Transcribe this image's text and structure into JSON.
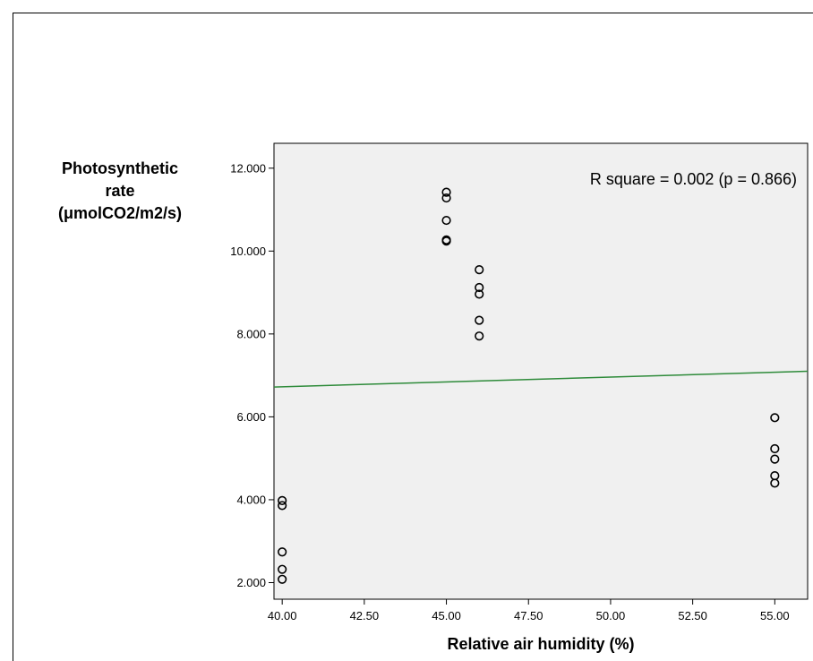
{
  "chart_data": {
    "type": "scatter",
    "xlabel": "Relative air humidity (%)",
    "ylabel": "Photosynthetic\nrate\n(μmolCO2/m2/s)",
    "xlim": [
      39.75,
      56.0
    ],
    "ylim": [
      1.6,
      12.6
    ],
    "x_ticks": [
      40.0,
      42.5,
      45.0,
      47.5,
      50.0,
      52.5,
      55.0
    ],
    "x_tick_labels": [
      "40.00",
      "42.50",
      "45.00",
      "47.50",
      "50.00",
      "52.50",
      "55.00"
    ],
    "y_ticks": [
      2.0,
      4.0,
      6.0,
      8.0,
      10.0,
      12.0
    ],
    "y_tick_labels": [
      "2.000",
      "4.000",
      "6.000",
      "8.000",
      "10.000",
      "12.000"
    ],
    "points": [
      {
        "x": 40,
        "y": 3.98
      },
      {
        "x": 40,
        "y": 3.86
      },
      {
        "x": 40,
        "y": 2.74
      },
      {
        "x": 40,
        "y": 2.32
      },
      {
        "x": 40,
        "y": 2.08
      },
      {
        "x": 45,
        "y": 11.42
      },
      {
        "x": 45,
        "y": 11.28
      },
      {
        "x": 45,
        "y": 10.74
      },
      {
        "x": 45,
        "y": 10.27
      },
      {
        "x": 45,
        "y": 10.24
      },
      {
        "x": 46,
        "y": 9.55
      },
      {
        "x": 46,
        "y": 9.12
      },
      {
        "x": 46,
        "y": 8.96
      },
      {
        "x": 46,
        "y": 8.33
      },
      {
        "x": 46,
        "y": 7.95
      },
      {
        "x": 55,
        "y": 5.98
      },
      {
        "x": 55,
        "y": 5.23
      },
      {
        "x": 55,
        "y": 4.98
      },
      {
        "x": 55,
        "y": 4.58
      },
      {
        "x": 55,
        "y": 4.4
      }
    ],
    "fit_line": {
      "x": [
        39.75,
        56.0
      ],
      "y": [
        6.72,
        7.1
      ]
    },
    "annotation": "R square = 0.002 (p = 0.866)",
    "grid": false,
    "legend": "none",
    "colors": {
      "plot_background": "#f0f0f0",
      "fit_line": "#2e8b3a",
      "points": "#000000"
    }
  }
}
